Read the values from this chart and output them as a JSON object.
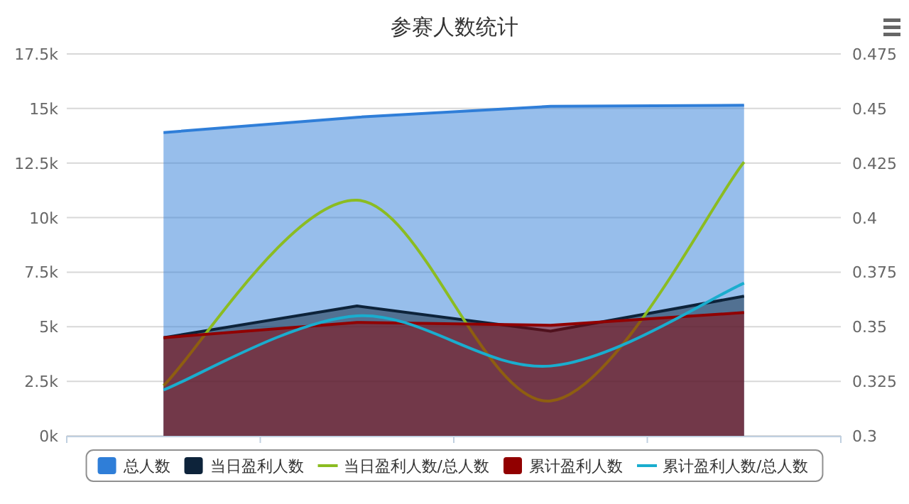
{
  "chart_data": {
    "type": "area",
    "title": "参赛人数统计",
    "categories": [
      null,
      null,
      null,
      null
    ],
    "series": [
      {
        "name": "总人数",
        "color": "#2f7ed8",
        "values": [
          13900,
          14600,
          15100,
          15150
        ]
      },
      {
        "name": "当日盈利人数",
        "color": "#0d233a",
        "values": [
          4500,
          5950,
          4800,
          6400
        ]
      },
      {
        "name": "当日盈利人数/总人数",
        "type": "line",
        "axis": "y2",
        "color": "#8bbc21",
        "values": [
          0.323,
          0.408,
          0.316,
          0.4255
        ]
      },
      {
        "name": "累计盈利人数",
        "color": "#910000",
        "values": [
          4500,
          5200,
          5070,
          5650
        ]
      },
      {
        "name": "累计盈利人数/总人数",
        "type": "line",
        "axis": "y2",
        "color": "#1aadce",
        "values": [
          0.321,
          0.355,
          0.332,
          0.37
        ]
      }
    ],
    "ylim": [
      0,
      17500
    ],
    "yticks": [
      {
        "value": 0,
        "label": "0k"
      },
      {
        "value": 2500,
        "label": "2.5k"
      },
      {
        "value": 5000,
        "label": "5k"
      },
      {
        "value": 7500,
        "label": "7.5k"
      },
      {
        "value": 10000,
        "label": "10k"
      },
      {
        "value": 12500,
        "label": "12.5k"
      },
      {
        "value": 15000,
        "label": "15k"
      },
      {
        "value": 17500,
        "label": "17.5k"
      }
    ],
    "y2lim": [
      0.3,
      0.475
    ],
    "y2ticks": [
      0.3,
      0.325,
      0.35,
      0.375,
      0.4,
      0.425,
      0.45,
      0.475
    ],
    "grid": "y",
    "legend": "bottom",
    "marker": "none"
  }
}
